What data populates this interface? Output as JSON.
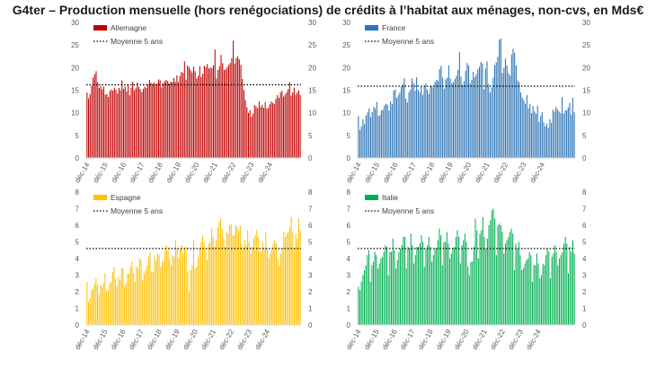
{
  "title": "G4ter – Production mensuelle (hors renégociations) de crédits à l’habitat aux ménages, non-cvs, en Mds€",
  "chart_data": [
    {
      "type": "bar",
      "panel": "top-left",
      "color": "#c00000",
      "avg_line_color": "#000000",
      "series_label": "Allemagne",
      "avg_label": "Moyenne 5 ans",
      "ylim": [
        0,
        30
      ],
      "yticks": [
        0,
        5,
        10,
        15,
        20,
        25,
        30
      ],
      "xticks": [
        "déc-14",
        "déc-15",
        "déc-16",
        "déc-17",
        "déc-18",
        "déc-19",
        "déc-20",
        "déc-21",
        "déc-22",
        "déc-23",
        "déc-24"
      ],
      "average": 16.2,
      "legend": "top-left",
      "grid": false,
      "start": "2014-12",
      "values": [
        14.5,
        13.2,
        14.1,
        16.0,
        17.8,
        18.6,
        19.2,
        16.8,
        15.5,
        16.0,
        15.2,
        15.8,
        14.0,
        14.2,
        13.5,
        14.8,
        15.2,
        14.9,
        15.6,
        15.1,
        14.3,
        15.5,
        15.0,
        17.2,
        15.3,
        15.8,
        14.7,
        16.1,
        13.9,
        15.6,
        16.9,
        15.0,
        15.4,
        16.7,
        15.7,
        15.2,
        14.6,
        15.3,
        15.8,
        15.5,
        16.3,
        17.3,
        16.6,
        16.3,
        16.7,
        16.2,
        16.5,
        17.4,
        17.2,
        15.6,
        16.5,
        17.0,
        17.3,
        17.0,
        16.5,
        16.9,
        16.8,
        17.7,
        16.9,
        18.3,
        16.8,
        18.2,
        19.1,
        18.8,
        21.4,
        17.3,
        20.5,
        20.1,
        19.5,
        18.9,
        20.2,
        19.2,
        17.6,
        18.2,
        20.3,
        17.9,
        18.6,
        20.4,
        20.1,
        20.8,
        19.8,
        20.0,
        19.9,
        20.5,
        24.0,
        17.6,
        19.5,
        20.3,
        22.8,
        21.0,
        19.5,
        19.6,
        20.1,
        20.6,
        21.0,
        22.1,
        26.0,
        20.9,
        22.1,
        22.5,
        21.8,
        20.6,
        17.5,
        15.0,
        12.8,
        11.2,
        10.0,
        10.6,
        9.1,
        9.8,
        11.7,
        11.4,
        11.0,
        12.5,
        11.3,
        11.8,
        11.1,
        12.4,
        10.9,
        11.1,
        11.9,
        12.5,
        12.2,
        11.9,
        13.1,
        13.9,
        13.3,
        14.5,
        14.9,
        13.6,
        14.0,
        14.5,
        15.2,
        16.8,
        13.8,
        14.5,
        15.6,
        14.0,
        14.5,
        15.0,
        13.9
      ]
    },
    {
      "type": "bar",
      "panel": "top-right",
      "color": "#2e75b6",
      "avg_line_color": "#000000",
      "series_label": "France",
      "avg_label": "Moyenne 5 ans",
      "ylim": [
        0,
        30
      ],
      "yticks": [
        0,
        5,
        10,
        15,
        20,
        25,
        30
      ],
      "xticks": [
        "déc-14",
        "déc-15",
        "déc-16",
        "déc-17",
        "déc-18",
        "déc-19",
        "déc-20",
        "déc-21",
        "déc-22",
        "déc-23",
        "déc-24"
      ],
      "average": 15.9,
      "legend": "top-left",
      "grid": false,
      "start": "2014-12",
      "values": [
        9.3,
        6.2,
        7.0,
        8.6,
        7.5,
        9.4,
        10.1,
        11.0,
        9.1,
        10.2,
        11.3,
        11.0,
        12.4,
        9.3,
        9.5,
        10.5,
        10.7,
        11.6,
        12.0,
        11.8,
        10.5,
        12.5,
        11.9,
        14.9,
        15.2,
        13.3,
        13.9,
        14.5,
        15.8,
        16.3,
        17.6,
        13.2,
        12.3,
        14.6,
        15.1,
        17.6,
        16.6,
        14.9,
        17.9,
        15.1,
        14.5,
        15.7,
        14.0,
        15.9,
        16.5,
        15.1,
        14.2,
        16.0,
        15.9,
        15.6,
        16.8,
        17.3,
        17.1,
        19.7,
        20.4,
        17.8,
        15.3,
        17.4,
        17.8,
        20.5,
        17.6,
        16.5,
        16.8,
        17.5,
        18.2,
        19.5,
        23.5,
        18.0,
        16.2,
        17.0,
        19.3,
        21.0,
        20.5,
        16.5,
        17.3,
        19.1,
        17.9,
        18.6,
        19.6,
        20.2,
        21.3,
        20.9,
        15.2,
        19.8,
        21.4,
        16.4,
        14.5,
        15.6,
        17.8,
        20.5,
        21.2,
        22.4,
        26.2,
        26.4,
        18.8,
        20.0,
        22.0,
        20.5,
        18.8,
        18.2,
        22.9,
        24.2,
        23.3,
        20.5,
        17.2,
        16.8,
        14.5,
        13.4,
        12.8,
        12.0,
        13.9,
        11.0,
        12.0,
        9.9,
        11.5,
        10.3,
        9.8,
        11.6,
        8.0,
        9.4,
        10.1,
        7.9,
        7.0,
        7.6,
        6.7,
        8.6,
        7.8,
        10.7,
        10.2,
        11.3,
        10.8,
        10.3,
        9.9,
        13.5,
        9.8,
        10.5,
        10.6,
        11.2,
        12.2,
        9.6,
        13.3,
        10.1
      ]
    },
    {
      "type": "bar",
      "panel": "bottom-left",
      "color": "#ffc000",
      "avg_line_color": "#000000",
      "series_label": "Espagne",
      "avg_label": "Moyenne 5 ans",
      "ylim": [
        0,
        8
      ],
      "yticks": [
        0,
        1,
        2,
        3,
        4,
        5,
        6,
        7,
        8
      ],
      "xticks": [
        "déc-14",
        "déc-15",
        "déc-16",
        "déc-17",
        "déc-18",
        "déc-19",
        "déc-20",
        "déc-21",
        "déc-22",
        "déc-23",
        "déc-24"
      ],
      "average": 4.6,
      "legend": "top-left",
      "grid": false,
      "start": "2014-12",
      "values": [
        2.6,
        1.4,
        1.6,
        2.1,
        2.2,
        2.5,
        2.8,
        2.4,
        1.8,
        2.4,
        2.3,
        2.5,
        3.1,
        2.0,
        2.1,
        2.5,
        2.6,
        3.2,
        3.5,
        2.8,
        2.3,
        2.9,
        2.7,
        3.4,
        3.4,
        2.3,
        2.5,
        3.1,
        3.1,
        3.5,
        3.8,
        3.1,
        2.6,
        3.5,
        3.4,
        4.0,
        3.9,
        2.7,
        3.1,
        3.3,
        3.6,
        4.1,
        4.4,
        3.2,
        3.2,
        4.1,
        3.9,
        4.3,
        4.2,
        3.5,
        3.8,
        3.9,
        4.5,
        4.8,
        4.5,
        4.0,
        3.6,
        4.2,
        4.1,
        5.1,
        4.6,
        4.0,
        4.6,
        4.8,
        4.3,
        4.6,
        4.7,
        3.2,
        2.0,
        3.3,
        3.6,
        5.1,
        3.4,
        3.5,
        4.1,
        4.6,
        5.0,
        5.4,
        5.0,
        4.6,
        3.9,
        4.9,
        5.0,
        5.8,
        5.3,
        4.7,
        5.1,
        5.9,
        6.2,
        6.4,
        5.8,
        5.2,
        4.7,
        5.6,
        5.5,
        6.0,
        6.1,
        5.4,
        5.4,
        6.0,
        5.9,
        5.7,
        6.0,
        4.9,
        4.6,
        5.1,
        4.8,
        5.7,
        5.0,
        4.3,
        4.7,
        5.2,
        5.4,
        5.7,
        5.3,
        4.4,
        4.4,
        5.0,
        4.6,
        5.6,
        4.6,
        4.0,
        4.3,
        4.5,
        4.9,
        5.1,
        4.9,
        4.0,
        3.6,
        4.3,
        4.6,
        5.6,
        5.3,
        5.5,
        5.6,
        5.9,
        6.5,
        5.6,
        4.6,
        5.5,
        5.2,
        6.4,
        5.7
      ]
    },
    {
      "type": "bar",
      "panel": "bottom-right",
      "color": "#00b050",
      "avg_line_color": "#000000",
      "series_label": "Italie",
      "avg_label": "Moyenne 5 ans",
      "ylim": [
        0,
        8
      ],
      "yticks": [
        0,
        1,
        2,
        3,
        4,
        5,
        6,
        7,
        8
      ],
      "xticks": [
        "déc-14",
        "déc-15",
        "déc-16",
        "déc-17",
        "déc-18",
        "déc-19",
        "déc-20",
        "déc-21",
        "déc-22",
        "déc-23",
        "déc-24"
      ],
      "average": 4.6,
      "legend": "top-left",
      "grid": false,
      "start": "2014-12",
      "values": [
        2.3,
        2.1,
        2.6,
        3.0,
        3.3,
        3.6,
        4.2,
        4.5,
        2.6,
        3.6,
        3.8,
        4.4,
        4.2,
        3.4,
        3.7,
        4.0,
        4.1,
        4.4,
        4.8,
        4.7,
        3.0,
        4.4,
        4.4,
        5.2,
        4.5,
        3.4,
        3.9,
        4.4,
        4.6,
        4.8,
        5.3,
        5.3,
        3.4,
        4.7,
        4.6,
        5.5,
        4.8,
        3.7,
        4.2,
        4.7,
        4.7,
        4.9,
        5.4,
        5.0,
        3.5,
        4.6,
        4.8,
        5.3,
        4.7,
        3.8,
        4.2,
        4.6,
        4.6,
        5.1,
        5.8,
        5.4,
        3.6,
        5.0,
        5.0,
        5.6,
        4.9,
        4.0,
        4.3,
        4.6,
        4.7,
        5.3,
        5.7,
        5.3,
        3.7,
        4.8,
        5.1,
        5.5,
        5.0,
        3.5,
        3.0,
        3.8,
        3.8,
        4.7,
        6.4,
        5.7,
        4.0,
        5.5,
        5.7,
        6.5,
        5.3,
        4.6,
        5.2,
        6.0,
        6.3,
        6.9,
        7.0,
        6.4,
        4.2,
        6.0,
        6.1,
        6.0,
        5.6,
        4.3,
        4.9,
        5.1,
        5.3,
        5.6,
        5.8,
        5.5,
        3.3,
        4.9,
        4.6,
        5.0,
        4.2,
        3.3,
        3.4,
        3.7,
        3.9,
        4.0,
        4.4,
        4.2,
        2.6,
        3.6,
        3.6,
        4.3,
        3.7,
        2.8,
        3.0,
        3.7,
        3.6,
        4.2,
        4.6,
        4.4,
        2.8,
        4.1,
        4.3,
        4.8,
        4.4,
        3.6,
        4.0,
        4.2,
        4.4,
        4.9,
        5.3,
        4.9,
        3.1,
        4.7,
        4.4,
        5.1,
        4.3
      ]
    }
  ]
}
